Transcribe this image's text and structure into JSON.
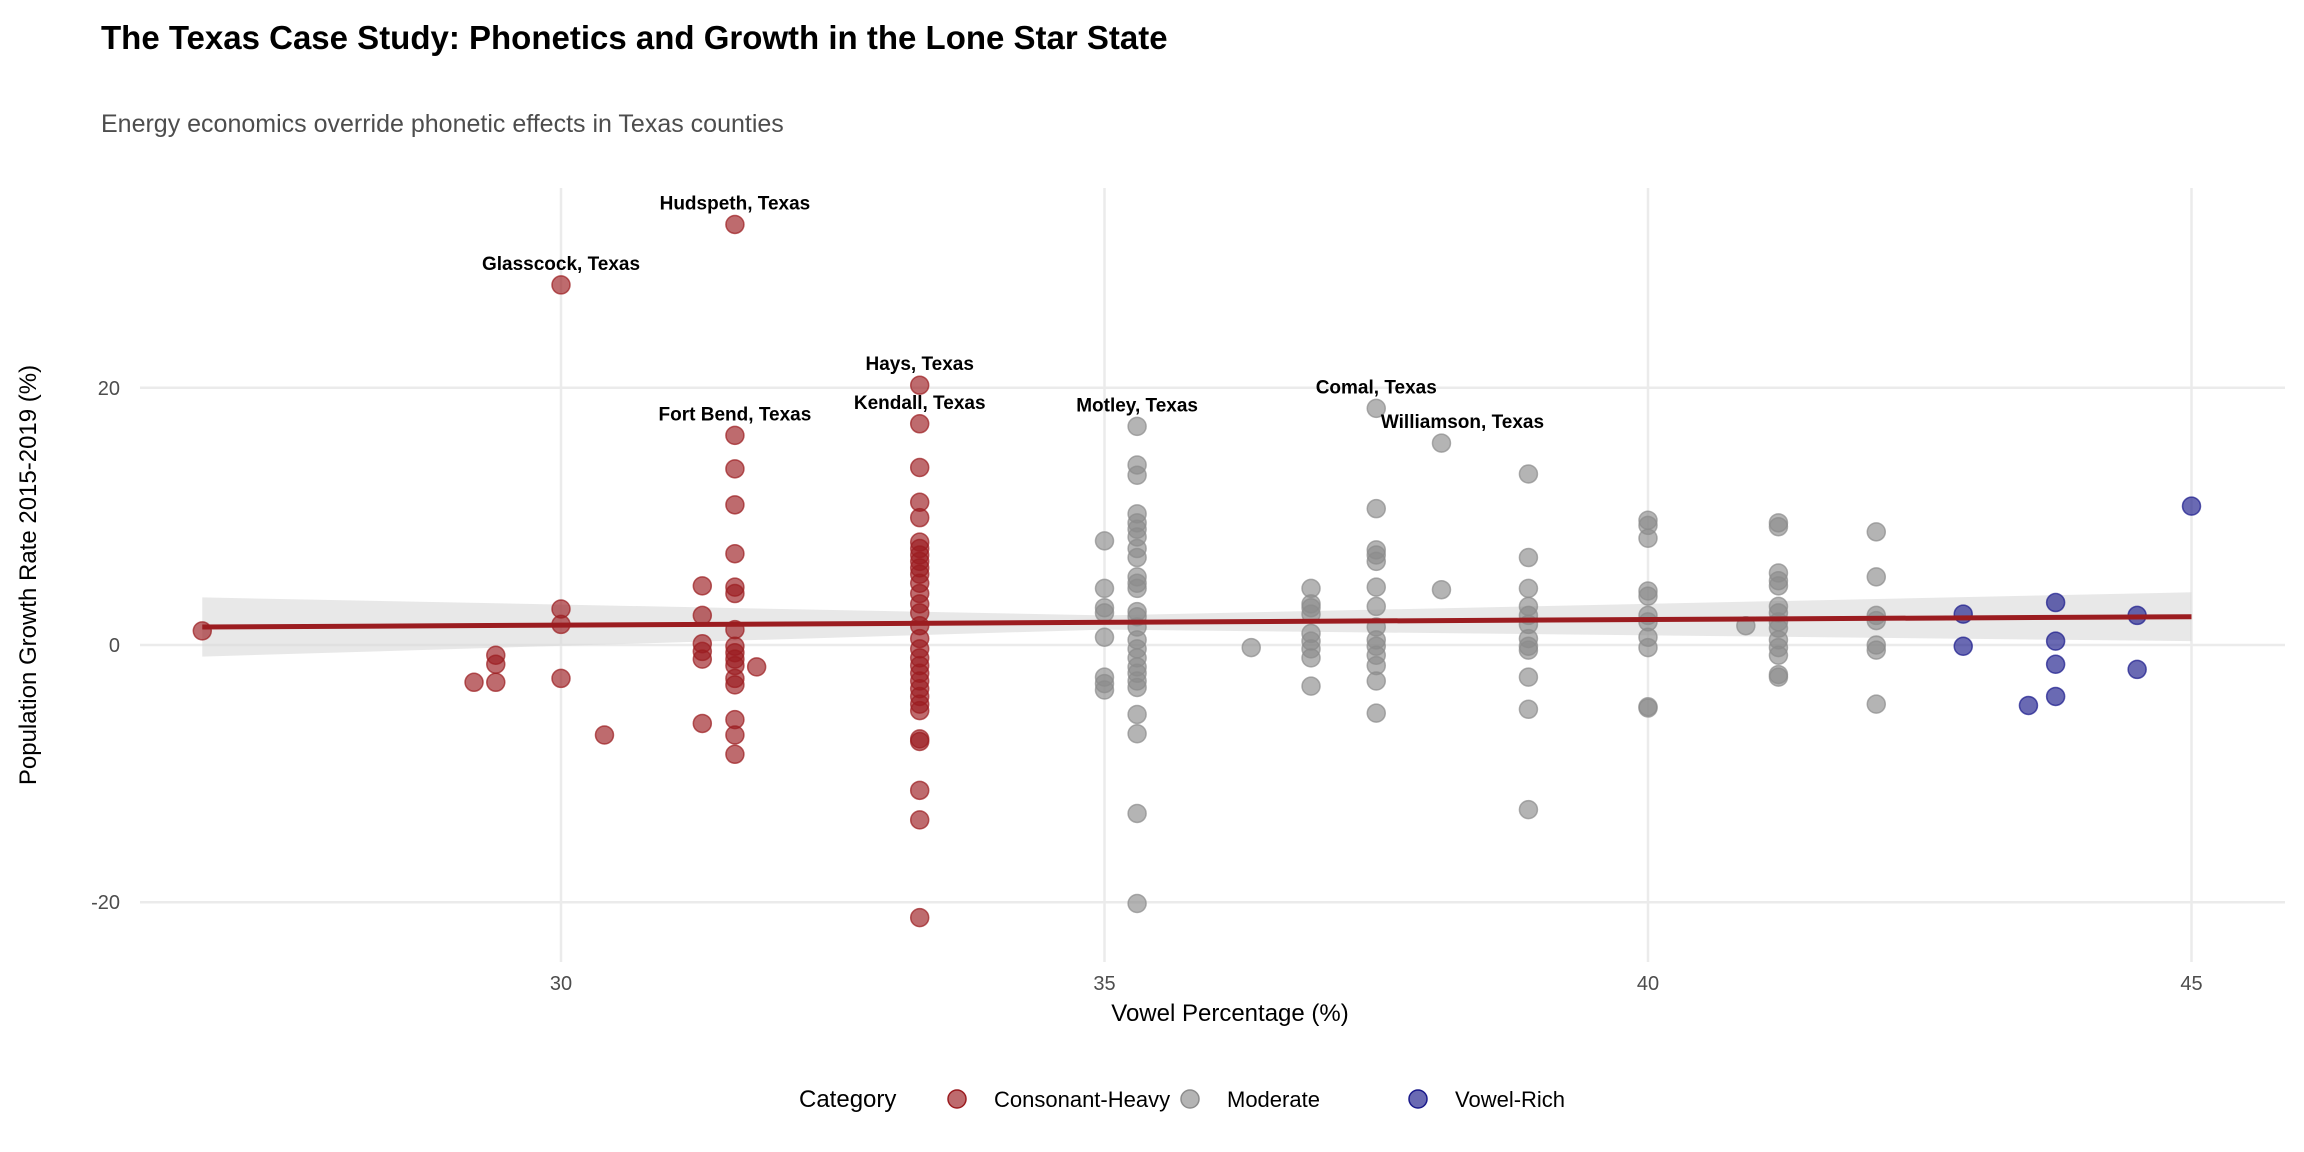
{
  "chart_data": {
    "type": "scatter",
    "title": "The Texas Case Study: Phonetics and Growth in the Lone Star State",
    "subtitle": "Energy economics override phonetic effects in Texas counties",
    "xlabel": "Vowel Percentage (%)",
    "ylabel": "Population Growth Rate 2015-2019 (%)",
    "xlim": [
      25.9,
      46.3
    ],
    "ylim": [
      -23.5,
      35.5
    ],
    "xticks": [
      30,
      35,
      40,
      45
    ],
    "yticks": [
      -20,
      0,
      20
    ],
    "grid": true,
    "legend": {
      "title": "Category",
      "position": "bottom"
    },
    "series": [
      {
        "name": "Consonant-Heavy",
        "color": "#9b1c20",
        "points": [
          [
            26.7,
            1.1
          ],
          [
            29.2,
            -2.9
          ],
          [
            29.4,
            -0.8
          ],
          [
            29.4,
            -1.5
          ],
          [
            29.4,
            -2.9
          ],
          [
            30,
            2.8
          ],
          [
            30,
            1.6
          ],
          [
            30,
            -2.6
          ],
          [
            30,
            28.0
          ],
          [
            30.4,
            -7.0
          ],
          [
            31.3,
            4.6
          ],
          [
            31.3,
            2.3
          ],
          [
            31.3,
            0.1
          ],
          [
            31.3,
            -0.5
          ],
          [
            31.3,
            -1.1
          ],
          [
            31.3,
            -6.1
          ],
          [
            31.6,
            32.7
          ],
          [
            31.6,
            16.3
          ],
          [
            31.6,
            13.7
          ],
          [
            31.6,
            10.9
          ],
          [
            31.6,
            7.1
          ],
          [
            31.6,
            4.5
          ],
          [
            31.6,
            4.0
          ],
          [
            31.6,
            1.2
          ],
          [
            31.6,
            -0.1
          ],
          [
            31.6,
            -0.6
          ],
          [
            31.6,
            -1.1
          ],
          [
            31.6,
            -1.6
          ],
          [
            31.6,
            -2.6
          ],
          [
            31.6,
            -3.1
          ],
          [
            31.6,
            -5.8
          ],
          [
            31.6,
            -7.0
          ],
          [
            31.6,
            -8.5
          ],
          [
            31.8,
            -1.7
          ],
          [
            33.3,
            20.2
          ],
          [
            33.3,
            17.2
          ],
          [
            33.3,
            13.8
          ],
          [
            33.3,
            11.1
          ],
          [
            33.3,
            9.9
          ],
          [
            33.3,
            8.0
          ],
          [
            33.3,
            7.5
          ],
          [
            33.3,
            7.0
          ],
          [
            33.3,
            6.5
          ],
          [
            33.3,
            6.0
          ],
          [
            33.3,
            5.5
          ],
          [
            33.3,
            4.8
          ],
          [
            33.3,
            4.0
          ],
          [
            33.3,
            3.2
          ],
          [
            33.3,
            2.5
          ],
          [
            33.3,
            1.5
          ],
          [
            33.3,
            0.5
          ],
          [
            33.3,
            -0.3
          ],
          [
            33.3,
            -1.0
          ],
          [
            33.3,
            -1.6
          ],
          [
            33.3,
            -2.2
          ],
          [
            33.3,
            -2.8
          ],
          [
            33.3,
            -3.4
          ],
          [
            33.3,
            -4.0
          ],
          [
            33.3,
            -4.6
          ],
          [
            33.3,
            -5.1
          ],
          [
            33.3,
            -7.3
          ],
          [
            33.3,
            -7.5
          ],
          [
            33.3,
            -11.3
          ],
          [
            33.3,
            -13.6
          ],
          [
            33.3,
            -21.2
          ]
        ]
      },
      {
        "name": "Moderate",
        "color": "#8c8c8c",
        "points": [
          [
            35,
            8.1
          ],
          [
            35,
            4.4
          ],
          [
            35,
            2.9
          ],
          [
            35,
            2.5
          ],
          [
            35,
            0.6
          ],
          [
            35,
            -2.5
          ],
          [
            35,
            -3.0
          ],
          [
            35,
            -3.5
          ],
          [
            35.3,
            17.0
          ],
          [
            35.3,
            14.0
          ],
          [
            35.3,
            13.2
          ],
          [
            35.3,
            10.2
          ],
          [
            35.3,
            9.5
          ],
          [
            35.3,
            9.0
          ],
          [
            35.3,
            8.4
          ],
          [
            35.3,
            7.5
          ],
          [
            35.3,
            6.8
          ],
          [
            35.3,
            5.3
          ],
          [
            35.3,
            4.8
          ],
          [
            35.3,
            4.4
          ],
          [
            35.3,
            2.6
          ],
          [
            35.3,
            2.2
          ],
          [
            35.3,
            1.4
          ],
          [
            35.3,
            0.4
          ],
          [
            35.3,
            -0.3
          ],
          [
            35.3,
            -1.0
          ],
          [
            35.3,
            -1.7
          ],
          [
            35.3,
            -2.2
          ],
          [
            35.3,
            -2.8
          ],
          [
            35.3,
            -3.3
          ],
          [
            35.3,
            -5.4
          ],
          [
            35.3,
            -6.9
          ],
          [
            35.3,
            -13.1
          ],
          [
            35.3,
            -20.1
          ],
          [
            36.35,
            -0.2
          ],
          [
            36.9,
            4.4
          ],
          [
            36.9,
            3.2
          ],
          [
            36.9,
            2.9
          ],
          [
            36.9,
            2.4
          ],
          [
            36.9,
            0.9
          ],
          [
            36.9,
            0.3
          ],
          [
            36.9,
            -0.3
          ],
          [
            36.9,
            -1.0
          ],
          [
            36.9,
            -3.2
          ],
          [
            37.5,
            18.4
          ],
          [
            37.5,
            10.6
          ],
          [
            37.5,
            7.4
          ],
          [
            37.5,
            7.0
          ],
          [
            37.5,
            6.5
          ],
          [
            37.5,
            4.5
          ],
          [
            37.5,
            3.0
          ],
          [
            37.5,
            1.4
          ],
          [
            37.5,
            0.4
          ],
          [
            37.5,
            -0.1
          ],
          [
            37.5,
            -0.8
          ],
          [
            37.5,
            -1.6
          ],
          [
            37.5,
            -2.8
          ],
          [
            37.5,
            -5.3
          ],
          [
            38.1,
            15.7
          ],
          [
            38.1,
            4.3
          ],
          [
            38.9,
            13.3
          ],
          [
            38.9,
            6.8
          ],
          [
            38.9,
            4.4
          ],
          [
            38.9,
            3.0
          ],
          [
            38.9,
            2.3
          ],
          [
            38.9,
            1.6
          ],
          [
            38.9,
            0.5
          ],
          [
            38.9,
            -0.1
          ],
          [
            38.9,
            -0.4
          ],
          [
            38.9,
            -2.5
          ],
          [
            38.9,
            -5.0
          ],
          [
            38.9,
            -12.8
          ],
          [
            40,
            9.7
          ],
          [
            40,
            9.3
          ],
          [
            40,
            8.3
          ],
          [
            40,
            4.2
          ],
          [
            40,
            3.8
          ],
          [
            40,
            2.3
          ],
          [
            40,
            1.8
          ],
          [
            40,
            0.6
          ],
          [
            40,
            -0.2
          ],
          [
            40,
            -4.8
          ],
          [
            40,
            -4.9
          ],
          [
            40.9,
            1.5
          ],
          [
            41.2,
            9.5
          ],
          [
            41.2,
            9.2
          ],
          [
            41.2,
            5.6
          ],
          [
            41.2,
            5.0
          ],
          [
            41.2,
            4.6
          ],
          [
            41.2,
            3.0
          ],
          [
            41.2,
            2.5
          ],
          [
            41.2,
            1.8
          ],
          [
            41.2,
            1.3
          ],
          [
            41.2,
            0.4
          ],
          [
            41.2,
            -0.2
          ],
          [
            41.2,
            -0.8
          ],
          [
            41.2,
            -2.3
          ],
          [
            41.2,
            -2.5
          ],
          [
            42.1,
            8.8
          ],
          [
            42.1,
            5.3
          ],
          [
            42.1,
            2.3
          ],
          [
            42.1,
            1.9
          ],
          [
            42.1,
            0.0
          ],
          [
            42.1,
            -0.4
          ],
          [
            42.1,
            -4.6
          ]
        ]
      },
      {
        "name": "Vowel-Rich",
        "color": "#1a1a8b",
        "points": [
          [
            42.9,
            2.4
          ],
          [
            42.9,
            -0.1
          ],
          [
            43.5,
            -4.7
          ],
          [
            43.75,
            3.3
          ],
          [
            43.75,
            0.3
          ],
          [
            43.75,
            -1.5
          ],
          [
            43.75,
            -4.0
          ],
          [
            44.5,
            2.3
          ],
          [
            44.5,
            -1.9
          ],
          [
            45,
            10.8
          ]
        ]
      }
    ],
    "trend": {
      "color": "#9b1c20",
      "x": [
        26.7,
        45
      ],
      "y": [
        1.4,
        2.2
      ],
      "ci_band": {
        "x": [
          26.7,
          35,
          45
        ],
        "lower": [
          -0.9,
          1.2,
          0.3
        ],
        "upper": [
          3.7,
          2.3,
          4.1
        ]
      }
    },
    "annotations": [
      {
        "label": "Hudspeth, Texas",
        "x": 31.6,
        "y": 32.7
      },
      {
        "label": "Glasscock, Texas",
        "x": 30,
        "y": 28.0
      },
      {
        "label": "Hays, Texas",
        "x": 33.3,
        "y": 20.2
      },
      {
        "label": "Kendall, Texas",
        "x": 33.3,
        "y": 17.2
      },
      {
        "label": "Fort Bend, Texas",
        "x": 31.6,
        "y": 16.3
      },
      {
        "label": "Motley, Texas",
        "x": 35.3,
        "y": 17.0
      },
      {
        "label": "Comal, Texas",
        "x": 37.5,
        "y": 18.4
      },
      {
        "label": "Williamson, Texas",
        "x": 38.1,
        "y": 15.7
      }
    ]
  }
}
